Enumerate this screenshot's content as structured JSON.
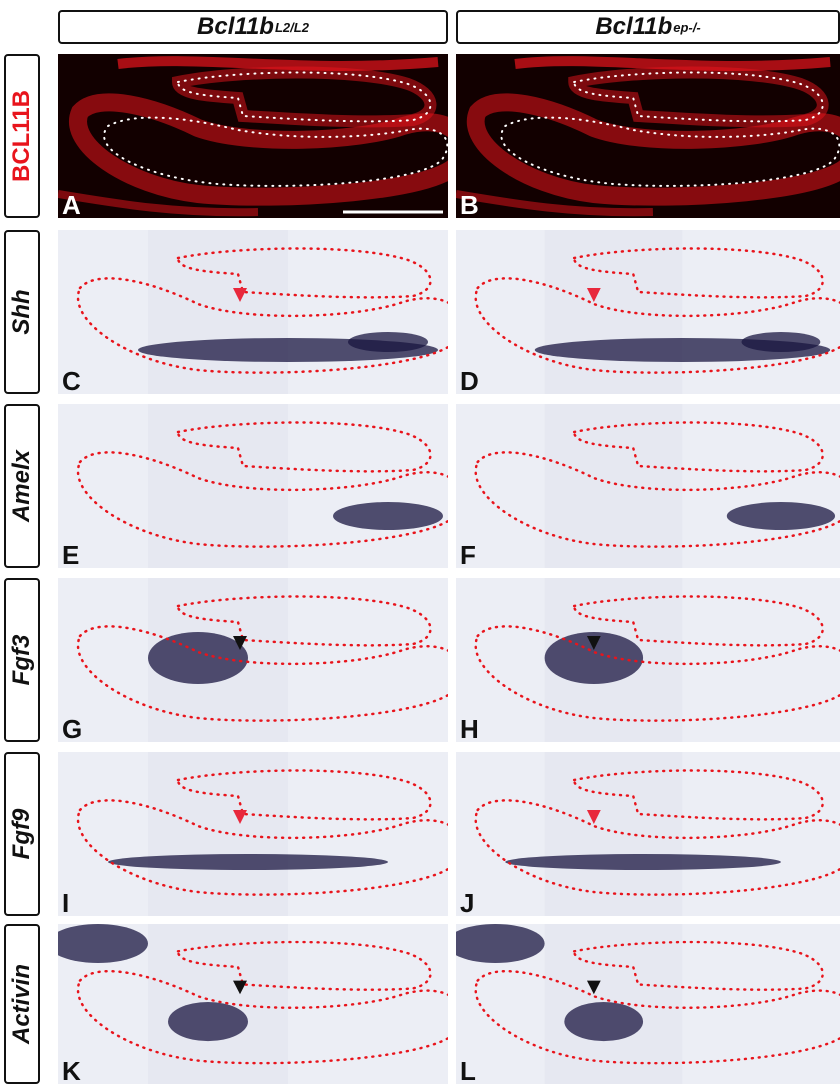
{
  "columns": [
    {
      "base": "Bcl11b",
      "sup": "L2/L2"
    },
    {
      "base": "Bcl11b",
      "sup": "ep-/-"
    }
  ],
  "rows": [
    {
      "label": "BCL11B",
      "style": "fluorescence",
      "labelColor": "#e8141c",
      "italic": false,
      "panels": [
        "A",
        "B"
      ],
      "arrow": "none"
    },
    {
      "label": "Shh",
      "style": "ish",
      "italic": true,
      "panels": [
        "C",
        "D"
      ],
      "arrow": "red"
    },
    {
      "label": "Amelx",
      "style": "ish",
      "italic": true,
      "panels": [
        "E",
        "F"
      ],
      "arrow": "none"
    },
    {
      "label": "Fgf3",
      "style": "ish",
      "italic": true,
      "panels": [
        "G",
        "H"
      ],
      "arrow": "black"
    },
    {
      "label": "Fgf9",
      "style": "ish",
      "italic": true,
      "panels": [
        "I",
        "J"
      ],
      "arrow": "red"
    },
    {
      "label": "Activin",
      "style": "ish",
      "italic": true,
      "panels": [
        "K",
        "L"
      ],
      "arrow": "black"
    }
  ],
  "colors": {
    "fluorescence": "#e8141c",
    "outline": "#e8141c",
    "stain": "#1a1640",
    "background_ish": "#eceef5",
    "arrow_red": "#e8283c",
    "arrow_black": "#111111"
  }
}
